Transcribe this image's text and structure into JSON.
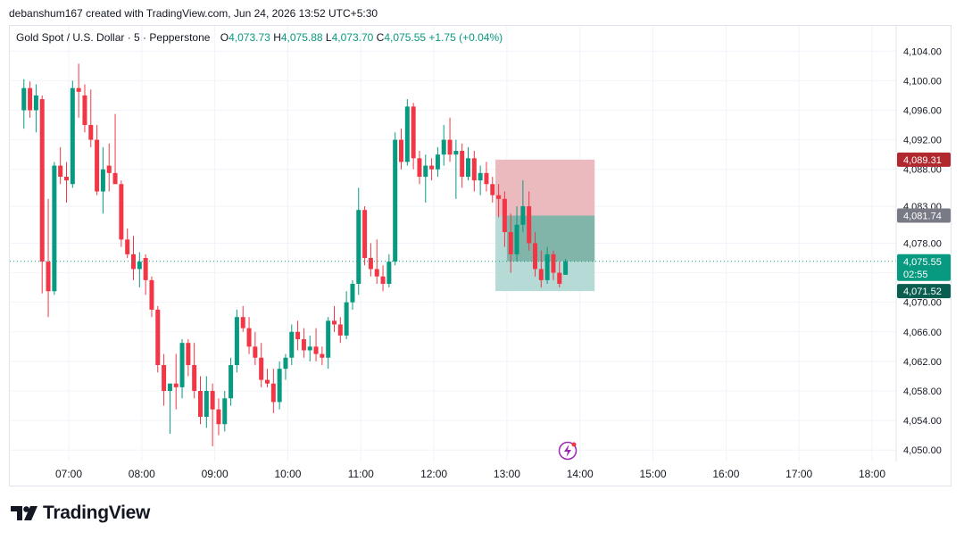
{
  "header": {
    "credit": "debanshum167 created with TradingView.com, Jun 24, 2026 13:52 UTC+5:30"
  },
  "legend": {
    "symbol": "Gold Spot / U.S. Dollar · 5 · Pepperstone",
    "o_label": "O",
    "o_value": "4,073.73",
    "h_label": "H",
    "h_value": "4,075.88",
    "l_label": "L",
    "l_value": "4,073.70",
    "c_label": "C",
    "c_value": "4,075.55",
    "change": "+1.75 (+0.04%)"
  },
  "price_labels": {
    "stop": "4,089.31",
    "entry": "4,081.74",
    "current": "4,075.55",
    "countdown": "02:55",
    "target": "4,071.52"
  },
  "colors": {
    "up": "#089981",
    "down": "#f23645",
    "stop_zone": "#e8b3b7",
    "target_zone": "#b2d8d3",
    "stop_label": "#b2282f",
    "entry_label": "#787b86",
    "target_label": "#0a5e4f"
  },
  "brand": {
    "name": "TradingView"
  },
  "chart_data": {
    "type": "candlestick",
    "symbol": "Gold Spot / U.S. Dollar",
    "interval": "5",
    "x_ticks": [
      "07:00",
      "08:00",
      "09:00",
      "10:00",
      "11:00",
      "12:00",
      "13:00",
      "14:00",
      "15:00",
      "16:00",
      "17:00",
      "18:00"
    ],
    "y_ticks": [
      "4,050.00",
      "4,054.00",
      "4,058.00",
      "4,062.00",
      "4,066.00",
      "4,070.00",
      "4,074.00",
      "4,078.00",
      "4,083.00",
      "4,088.00",
      "4,092.00",
      "4,096.00",
      "4,100.00",
      "4,104.00"
    ],
    "ylim": [
      4048.5,
      4105.5
    ],
    "grid": true,
    "last_price": 4075.55,
    "position": {
      "type": "short",
      "stop": 4089.31,
      "entry": 4081.74,
      "target": 4071.52,
      "start": "12:55",
      "end": "14:15"
    },
    "candles": [
      {
        "t": "06:25",
        "o": 4096.0,
        "h": 4100.2,
        "l": 4093.5,
        "c": 4099.0
      },
      {
        "t": "06:30",
        "o": 4099.0,
        "h": 4099.9,
        "l": 4095.0,
        "c": 4096.0
      },
      {
        "t": "06:35",
        "o": 4096.0,
        "h": 4099.5,
        "l": 4093.0,
        "c": 4098.0
      },
      {
        "t": "06:40",
        "o": 4097.5,
        "h": 4098.0,
        "l": 4071.2,
        "c": 4075.5
      },
      {
        "t": "06:45",
        "o": 4075.5,
        "h": 4084.0,
        "l": 4068.0,
        "c": 4071.5
      },
      {
        "t": "06:50",
        "o": 4071.5,
        "h": 4089.0,
        "l": 4071.0,
        "c": 4088.5
      },
      {
        "t": "06:55",
        "o": 4088.5,
        "h": 4091.0,
        "l": 4086.0,
        "c": 4087.0
      },
      {
        "t": "07:00",
        "o": 4087.0,
        "h": 4089.0,
        "l": 4083.5,
        "c": 4086.5
      },
      {
        "t": "07:05",
        "o": 4086.0,
        "h": 4100.0,
        "l": 4085.5,
        "c": 4099.0
      },
      {
        "t": "07:10",
        "o": 4099.0,
        "h": 4102.3,
        "l": 4095.0,
        "c": 4098.5
      },
      {
        "t": "07:15",
        "o": 4098.0,
        "h": 4099.5,
        "l": 4093.0,
        "c": 4094.0
      },
      {
        "t": "07:20",
        "o": 4094.0,
        "h": 4098.8,
        "l": 4091.0,
        "c": 4092.0
      },
      {
        "t": "07:25",
        "o": 4092.0,
        "h": 4094.0,
        "l": 4084.5,
        "c": 4085.0
      },
      {
        "t": "07:30",
        "o": 4085.0,
        "h": 4091.0,
        "l": 4082.0,
        "c": 4088.0
      },
      {
        "t": "07:35",
        "o": 4088.5,
        "h": 4091.5,
        "l": 4085.0,
        "c": 4087.5
      },
      {
        "t": "07:40",
        "o": 4087.5,
        "h": 4095.5,
        "l": 4086.0,
        "c": 4086.0
      },
      {
        "t": "07:45",
        "o": 4086.0,
        "h": 4086.5,
        "l": 4077.5,
        "c": 4078.5
      },
      {
        "t": "07:50",
        "o": 4078.5,
        "h": 4080.0,
        "l": 4076.0,
        "c": 4076.5
      },
      {
        "t": "07:55",
        "o": 4076.5,
        "h": 4079.0,
        "l": 4073.0,
        "c": 4074.5
      },
      {
        "t": "08:00",
        "o": 4074.5,
        "h": 4076.8,
        "l": 4072.0,
        "c": 4075.5
      },
      {
        "t": "08:05",
        "o": 4076.0,
        "h": 4076.5,
        "l": 4071.0,
        "c": 4073.0
      },
      {
        "t": "08:10",
        "o": 4073.0,
        "h": 4073.5,
        "l": 4068.0,
        "c": 4069.0
      },
      {
        "t": "08:15",
        "o": 4069.0,
        "h": 4069.5,
        "l": 4060.5,
        "c": 4061.5
      },
      {
        "t": "08:20",
        "o": 4061.5,
        "h": 4063.0,
        "l": 4056.0,
        "c": 4058.0
      },
      {
        "t": "08:25",
        "o": 4058.0,
        "h": 4059.0,
        "l": 4052.2,
        "c": 4059.0
      },
      {
        "t": "08:30",
        "o": 4059.0,
        "h": 4063.0,
        "l": 4055.5,
        "c": 4058.5
      },
      {
        "t": "08:35",
        "o": 4058.5,
        "h": 4065.0,
        "l": 4057.0,
        "c": 4064.5
      },
      {
        "t": "08:40",
        "o": 4064.5,
        "h": 4065.0,
        "l": 4060.0,
        "c": 4061.5
      },
      {
        "t": "08:45",
        "o": 4061.5,
        "h": 4064.5,
        "l": 4057.0,
        "c": 4058.0
      },
      {
        "t": "08:50",
        "o": 4058.0,
        "h": 4060.0,
        "l": 4053.5,
        "c": 4054.5
      },
      {
        "t": "08:55",
        "o": 4054.5,
        "h": 4060.0,
        "l": 4053.0,
        "c": 4058.0
      },
      {
        "t": "09:00",
        "o": 4058.0,
        "h": 4059.0,
        "l": 4050.5,
        "c": 4055.5
      },
      {
        "t": "09:05",
        "o": 4055.5,
        "h": 4057.0,
        "l": 4052.0,
        "c": 4053.5
      },
      {
        "t": "09:10",
        "o": 4053.5,
        "h": 4058.0,
        "l": 4052.5,
        "c": 4057.0
      },
      {
        "t": "09:15",
        "o": 4057.0,
        "h": 4062.5,
        "l": 4056.0,
        "c": 4061.5
      },
      {
        "t": "09:20",
        "o": 4061.5,
        "h": 4069.0,
        "l": 4060.5,
        "c": 4068.0
      },
      {
        "t": "09:25",
        "o": 4068.0,
        "h": 4069.5,
        "l": 4066.0,
        "c": 4066.5
      },
      {
        "t": "09:30",
        "o": 4066.5,
        "h": 4068.0,
        "l": 4063.0,
        "c": 4064.0
      },
      {
        "t": "09:35",
        "o": 4064.0,
        "h": 4066.0,
        "l": 4061.5,
        "c": 4062.5
      },
      {
        "t": "09:40",
        "o": 4062.5,
        "h": 4064.5,
        "l": 4058.5,
        "c": 4059.5
      },
      {
        "t": "09:45",
        "o": 4059.5,
        "h": 4061.0,
        "l": 4058.5,
        "c": 4059.0
      },
      {
        "t": "09:50",
        "o": 4059.0,
        "h": 4061.0,
        "l": 4055.0,
        "c": 4056.5
      },
      {
        "t": "09:55",
        "o": 4056.5,
        "h": 4062.0,
        "l": 4055.5,
        "c": 4061.0
      },
      {
        "t": "10:00",
        "o": 4061.0,
        "h": 4063.0,
        "l": 4059.5,
        "c": 4062.5
      },
      {
        "t": "10:05",
        "o": 4062.5,
        "h": 4067.0,
        "l": 4061.5,
        "c": 4066.0
      },
      {
        "t": "10:10",
        "o": 4066.0,
        "h": 4067.5,
        "l": 4063.5,
        "c": 4065.0
      },
      {
        "t": "10:15",
        "o": 4065.0,
        "h": 4066.5,
        "l": 4062.5,
        "c": 4063.5
      },
      {
        "t": "10:20",
        "o": 4063.5,
        "h": 4065.5,
        "l": 4062.0,
        "c": 4064.0
      },
      {
        "t": "10:25",
        "o": 4064.0,
        "h": 4066.5,
        "l": 4062.0,
        "c": 4063.0
      },
      {
        "t": "10:30",
        "o": 4063.0,
        "h": 4064.0,
        "l": 4061.5,
        "c": 4062.5
      },
      {
        "t": "10:35",
        "o": 4062.5,
        "h": 4068.0,
        "l": 4061.0,
        "c": 4067.5
      },
      {
        "t": "10:40",
        "o": 4067.5,
        "h": 4069.5,
        "l": 4066.0,
        "c": 4067.0
      },
      {
        "t": "10:45",
        "o": 4067.0,
        "h": 4068.0,
        "l": 4064.5,
        "c": 4065.5
      },
      {
        "t": "10:50",
        "o": 4065.5,
        "h": 4071.5,
        "l": 4065.0,
        "c": 4070.0
      },
      {
        "t": "10:55",
        "o": 4070.0,
        "h": 4073.0,
        "l": 4069.0,
        "c": 4072.5
      },
      {
        "t": "11:00",
        "o": 4072.5,
        "h": 4085.5,
        "l": 4071.0,
        "c": 4082.5
      },
      {
        "t": "11:05",
        "o": 4082.5,
        "h": 4083.0,
        "l": 4075.0,
        "c": 4076.0
      },
      {
        "t": "11:10",
        "o": 4076.0,
        "h": 4078.0,
        "l": 4073.5,
        "c": 4074.5
      },
      {
        "t": "11:15",
        "o": 4074.5,
        "h": 4078.5,
        "l": 4072.5,
        "c": 4073.5
      },
      {
        "t": "11:20",
        "o": 4073.5,
        "h": 4075.0,
        "l": 4071.5,
        "c": 4072.5
      },
      {
        "t": "11:25",
        "o": 4072.5,
        "h": 4076.5,
        "l": 4072.0,
        "c": 4075.5
      },
      {
        "t": "11:30",
        "o": 4075.5,
        "h": 4093.0,
        "l": 4075.0,
        "c": 4092.0
      },
      {
        "t": "11:35",
        "o": 4092.0,
        "h": 4093.5,
        "l": 4088.0,
        "c": 4089.0
      },
      {
        "t": "11:40",
        "o": 4089.0,
        "h": 4097.5,
        "l": 4088.5,
        "c": 4096.5
      },
      {
        "t": "11:45",
        "o": 4096.5,
        "h": 4097.0,
        "l": 4088.0,
        "c": 4089.5
      },
      {
        "t": "11:50",
        "o": 4089.5,
        "h": 4090.5,
        "l": 4086.0,
        "c": 4087.0
      },
      {
        "t": "11:55",
        "o": 4087.0,
        "h": 4090.0,
        "l": 4083.5,
        "c": 4088.5
      },
      {
        "t": "12:00",
        "o": 4088.5,
        "h": 4089.5,
        "l": 4086.5,
        "c": 4088.0
      },
      {
        "t": "12:05",
        "o": 4088.0,
        "h": 4091.0,
        "l": 4087.0,
        "c": 4090.0
      },
      {
        "t": "12:10",
        "o": 4090.0,
        "h": 4094.0,
        "l": 4088.5,
        "c": 4092.0
      },
      {
        "t": "12:15",
        "o": 4092.0,
        "h": 4095.0,
        "l": 4089.0,
        "c": 4090.0
      },
      {
        "t": "12:20",
        "o": 4090.0,
        "h": 4092.0,
        "l": 4084.0,
        "c": 4090.5
      },
      {
        "t": "12:25",
        "o": 4090.5,
        "h": 4091.5,
        "l": 4085.5,
        "c": 4087.0
      },
      {
        "t": "12:30",
        "o": 4087.0,
        "h": 4091.0,
        "l": 4086.5,
        "c": 4089.5
      },
      {
        "t": "12:35",
        "o": 4089.5,
        "h": 4090.5,
        "l": 4085.0,
        "c": 4086.5
      },
      {
        "t": "12:40",
        "o": 4086.5,
        "h": 4088.5,
        "l": 4084.5,
        "c": 4087.5
      },
      {
        "t": "12:45",
        "o": 4087.5,
        "h": 4089.0,
        "l": 4085.0,
        "c": 4086.0
      },
      {
        "t": "12:50",
        "o": 4086.0,
        "h": 4087.0,
        "l": 4083.5,
        "c": 4084.5
      },
      {
        "t": "12:55",
        "o": 4084.5,
        "h": 4086.0,
        "l": 4081.5,
        "c": 4084.0
      },
      {
        "t": "13:00",
        "o": 4084.0,
        "h": 4085.0,
        "l": 4077.5,
        "c": 4079.5
      },
      {
        "t": "13:05",
        "o": 4079.5,
        "h": 4082.0,
        "l": 4074.0,
        "c": 4076.5
      },
      {
        "t": "13:10",
        "o": 4076.5,
        "h": 4083.0,
        "l": 4075.5,
        "c": 4080.5
      },
      {
        "t": "13:15",
        "o": 4080.5,
        "h": 4086.5,
        "l": 4079.5,
        "c": 4083.0
      },
      {
        "t": "13:20",
        "o": 4083.0,
        "h": 4085.0,
        "l": 4077.0,
        "c": 4078.0
      },
      {
        "t": "13:25",
        "o": 4078.0,
        "h": 4079.5,
        "l": 4073.5,
        "c": 4074.5
      },
      {
        "t": "13:30",
        "o": 4074.5,
        "h": 4077.0,
        "l": 4072.0,
        "c": 4073.0
      },
      {
        "t": "13:35",
        "o": 4073.0,
        "h": 4077.5,
        "l": 4072.5,
        "c": 4076.5
      },
      {
        "t": "13:40",
        "o": 4076.5,
        "h": 4077.0,
        "l": 4073.0,
        "c": 4074.0
      },
      {
        "t": "13:45",
        "o": 4074.0,
        "h": 4075.5,
        "l": 4072.0,
        "c": 4072.5
      },
      {
        "t": "13:50",
        "o": 4073.73,
        "h": 4075.88,
        "l": 4073.7,
        "c": 4075.55
      }
    ]
  }
}
